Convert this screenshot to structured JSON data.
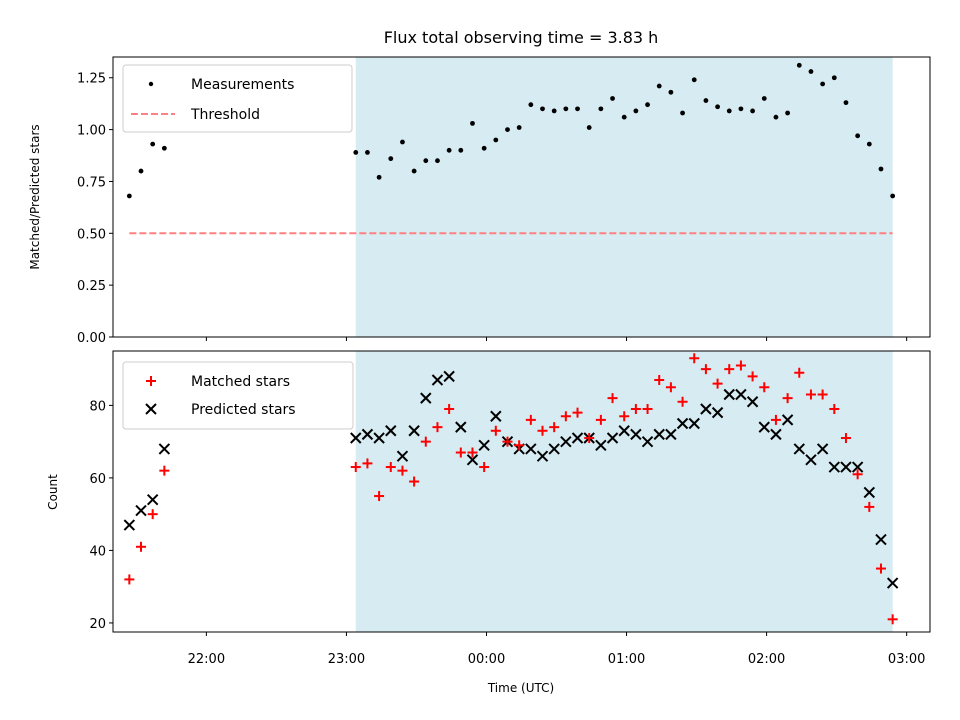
{
  "chart_data": [
    {
      "type": "scatter",
      "title": "Flux total observing time = 3.83 h",
      "xlabel": "",
      "ylabel": "Matched/Predicted stars",
      "xlim": [
        "21:20",
        "03:10"
      ],
      "ylim": [
        0,
        1.35
      ],
      "yticks": [
        "0.00",
        "0.25",
        "0.50",
        "0.75",
        "1.00",
        "1.25"
      ],
      "xticks": [
        "22:00",
        "23:00",
        "00:00",
        "01:00",
        "02:00",
        "03:00"
      ],
      "xtick_labels_visible": false,
      "shaded_interval": [
        "23:04",
        "02:54"
      ],
      "shade_color": "#add8e6",
      "legend_position": "upper left",
      "series": [
        {
          "name": "Measurements",
          "marker": "dot",
          "color": "#000000",
          "x": [
            "21:27",
            "21:32",
            "21:37",
            "21:42",
            "23:04",
            "23:09",
            "23:14",
            "23:19",
            "23:24",
            "23:29",
            "23:34",
            "23:39",
            "23:44",
            "23:49",
            "23:54",
            "23:59",
            "00:04",
            "00:09",
            "00:14",
            "00:19",
            "00:24",
            "00:29",
            "00:34",
            "00:39",
            "00:44",
            "00:49",
            "00:54",
            "00:59",
            "01:04",
            "01:09",
            "01:14",
            "01:19",
            "01:24",
            "01:29",
            "01:34",
            "01:39",
            "01:44",
            "01:49",
            "01:54",
            "01:59",
            "02:04",
            "02:09",
            "02:14",
            "02:19",
            "02:24",
            "02:29",
            "02:34",
            "02:39",
            "02:44",
            "02:49",
            "02:54"
          ],
          "y": [
            0.68,
            0.8,
            0.93,
            0.91,
            0.89,
            0.89,
            0.77,
            0.86,
            0.94,
            0.8,
            0.85,
            0.85,
            0.9,
            0.9,
            1.03,
            0.91,
            0.95,
            1.0,
            1.01,
            1.12,
            1.1,
            1.09,
            1.1,
            1.1,
            1.01,
            1.1,
            1.15,
            1.06,
            1.09,
            1.12,
            1.21,
            1.18,
            1.08,
            1.24,
            1.14,
            1.11,
            1.09,
            1.1,
            1.09,
            1.15,
            1.06,
            1.08,
            1.31,
            1.28,
            1.22,
            1.25,
            1.13,
            0.97,
            0.93,
            0.81,
            0.68
          ]
        },
        {
          "name": "Threshold",
          "marker": "dashed-line",
          "color": "#ff8080",
          "x": [
            "21:27",
            "02:54"
          ],
          "y": [
            0.5,
            0.5
          ]
        }
      ]
    },
    {
      "type": "scatter",
      "title": "",
      "xlabel": "Time (UTC)",
      "ylabel": "Count",
      "xlim": [
        "21:20",
        "03:10"
      ],
      "ylim": [
        17.5,
        95
      ],
      "yticks": [
        "20",
        "40",
        "60",
        "80"
      ],
      "xticks": [
        "22:00",
        "23:00",
        "00:00",
        "01:00",
        "02:00",
        "03:00"
      ],
      "shaded_interval": [
        "23:04",
        "02:54"
      ],
      "shade_color": "#add8e6",
      "legend_position": "upper left",
      "series": [
        {
          "name": "Matched stars",
          "marker": "plus",
          "color": "#ff0000",
          "x": [
            "21:27",
            "21:32",
            "21:37",
            "21:42",
            "23:04",
            "23:09",
            "23:14",
            "23:19",
            "23:24",
            "23:29",
            "23:34",
            "23:39",
            "23:44",
            "23:49",
            "23:54",
            "23:59",
            "00:04",
            "00:09",
            "00:14",
            "00:19",
            "00:24",
            "00:29",
            "00:34",
            "00:39",
            "00:44",
            "00:49",
            "00:54",
            "00:59",
            "01:04",
            "01:09",
            "01:14",
            "01:19",
            "01:24",
            "01:29",
            "01:34",
            "01:39",
            "01:44",
            "01:49",
            "01:54",
            "01:59",
            "02:04",
            "02:09",
            "02:14",
            "02:19",
            "02:24",
            "02:29",
            "02:34",
            "02:39",
            "02:44",
            "02:49",
            "02:54"
          ],
          "y": [
            32,
            41,
            50,
            62,
            63,
            64,
            55,
            63,
            62,
            59,
            70,
            74,
            79,
            67,
            67,
            63,
            73,
            70,
            69,
            76,
            73,
            74,
            77,
            78,
            71,
            76,
            82,
            77,
            79,
            79,
            87,
            85,
            81,
            93,
            90,
            86,
            90,
            91,
            88,
            85,
            76,
            82,
            89,
            83,
            83,
            79,
            71,
            61,
            52,
            35,
            21
          ]
        },
        {
          "name": "Predicted stars",
          "marker": "x",
          "color": "#000000",
          "x": [
            "21:27",
            "21:32",
            "21:37",
            "21:42",
            "23:04",
            "23:09",
            "23:14",
            "23:19",
            "23:24",
            "23:29",
            "23:34",
            "23:39",
            "23:44",
            "23:49",
            "23:54",
            "23:59",
            "00:04",
            "00:09",
            "00:14",
            "00:19",
            "00:24",
            "00:29",
            "00:34",
            "00:39",
            "00:44",
            "00:49",
            "00:54",
            "00:59",
            "01:04",
            "01:09",
            "01:14",
            "01:19",
            "01:24",
            "01:29",
            "01:34",
            "01:39",
            "01:44",
            "01:49",
            "01:54",
            "01:59",
            "02:04",
            "02:09",
            "02:14",
            "02:19",
            "02:24",
            "02:29",
            "02:34",
            "02:39",
            "02:44",
            "02:49",
            "02:54"
          ],
          "y": [
            47,
            51,
            54,
            68,
            71,
            72,
            71,
            73,
            66,
            73,
            82,
            87,
            88,
            74,
            65,
            69,
            77,
            70,
            68,
            68,
            66,
            68,
            70,
            71,
            71,
            69,
            71,
            73,
            72,
            70,
            72,
            72,
            75,
            75,
            79,
            78,
            83,
            83,
            81,
            74,
            72,
            76,
            68,
            65,
            68,
            63,
            63,
            63,
            56,
            43,
            31
          ]
        }
      ]
    }
  ]
}
